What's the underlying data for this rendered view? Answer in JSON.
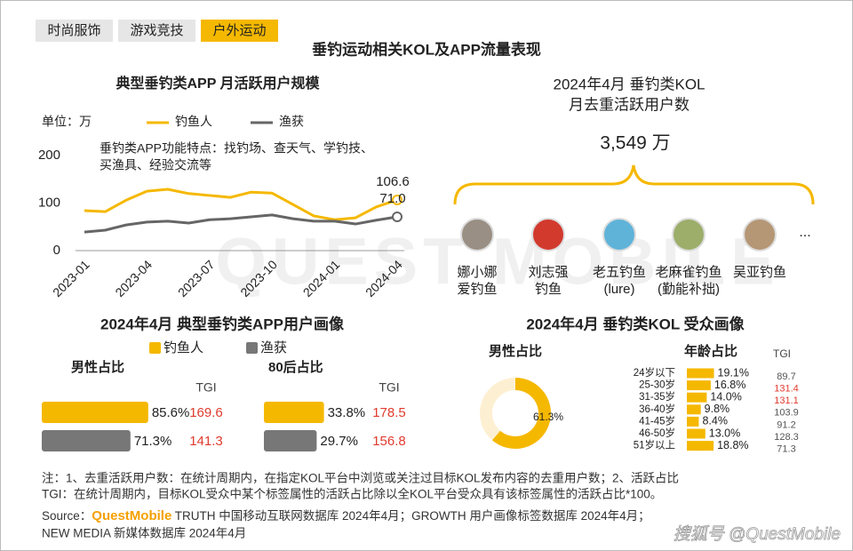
{
  "tabs": [
    "时尚服饰",
    "游戏竞技",
    "户外运动"
  ],
  "active_tab": "户外运动",
  "title": "垂钓运动相关KOL及APP流量表现",
  "chart_data": [
    {
      "type": "line",
      "title": "典型垂钓类APP 月活跃用户规模",
      "unit_label": "单位：万",
      "annotation_lines": [
        "垂钓类APP功能特点：找钓场、查天气、学钓技、",
        "买渔具、经验交流等"
      ],
      "categories": [
        "2023-01",
        null,
        null,
        "2023-04",
        null,
        null,
        "2023-07",
        null,
        null,
        "2023-10",
        null,
        null,
        "2024-01",
        null,
        null,
        "2024-04"
      ],
      "series": [
        {
          "name": "钓鱼人",
          "color": "#f5b800",
          "values": [
            84,
            82,
            106,
            125,
            129,
            120,
            116,
            112,
            123,
            121,
            97,
            73,
            65,
            69,
            92,
            106.6
          ],
          "value_labels": [
            null,
            null,
            null,
            null,
            null,
            null,
            null,
            null,
            null,
            null,
            null,
            null,
            null,
            null,
            null,
            "106.6"
          ]
        },
        {
          "name": "渔获",
          "color": "#666666",
          "values": [
            39,
            43,
            54,
            60,
            62,
            58,
            65,
            67,
            71,
            75,
            67,
            62,
            62,
            56,
            64,
            71.0
          ],
          "value_labels": [
            null,
            null,
            null,
            null,
            null,
            null,
            null,
            null,
            null,
            null,
            null,
            null,
            null,
            null,
            null,
            "71.0"
          ]
        }
      ],
      "ylim": [
        0,
        200
      ],
      "yticks": [
        0,
        100,
        200
      ]
    },
    {
      "type": "hbar",
      "title": "男性占比",
      "categories": [
        "钓鱼人",
        "渔获"
      ],
      "colors": [
        "#f5b800",
        "#777777"
      ],
      "values": [
        85.6,
        71.3
      ],
      "value_labels": [
        "85.6%",
        "71.3%"
      ],
      "tgi_label": "TGI",
      "tgi": [
        169.6,
        141.3
      ],
      "tgi_color": "#e03b2e"
    },
    {
      "type": "hbar",
      "title": "80后占比",
      "colors": [
        "#f5b800",
        "#777777"
      ],
      "values": [
        33.8,
        29.7
      ],
      "value_labels": [
        "33.8%",
        "29.7%"
      ],
      "tgi_label": "TGI",
      "tgi": [
        178.5,
        156.8
      ],
      "tgi_color": "#e03b2e"
    },
    {
      "type": "donut",
      "title": "男性占比",
      "values": [
        61.3
      ],
      "value_labels": [
        "61.3%"
      ],
      "colors": [
        "#f5b800",
        "#fdf0d2"
      ]
    },
    {
      "type": "agebar",
      "title": "年龄占比",
      "categories": [
        "24岁以下",
        "25-30岁",
        "31-35岁",
        "36-40岁",
        "41-45岁",
        "46-50岁",
        "51岁以上"
      ],
      "color": "#f5b800",
      "values": [
        19.1,
        16.8,
        14.0,
        9.8,
        8.4,
        13.0,
        18.8
      ],
      "value_labels": [
        "19.1%",
        "16.8%",
        "14.0%",
        "9.8%",
        "8.4%",
        "13.0%",
        "18.8%"
      ],
      "tgi_label": "TGI",
      "tgi": [
        89.7,
        131.4,
        131.1,
        103.9,
        91.2,
        128.3,
        71.3
      ],
      "tgi_colors": [
        "#555555",
        "#e03b2e",
        "#e03b2e",
        "#555555",
        "#555555",
        "#555555",
        "#555555"
      ]
    }
  ],
  "kol": {
    "title_lines": [
      "2024年4月 垂钓类KOL",
      "月去重活跃用户数"
    ],
    "total": "3,549 万",
    "accounts": [
      [
        "娜小娜",
        "爱钓鱼"
      ],
      [
        "刘志强",
        "钓鱼"
      ],
      [
        "老五钓鱼",
        "(lure)"
      ],
      [
        "老麻雀钓鱼",
        "(勤能补拙)"
      ],
      [
        "吴亚钓鱼"
      ]
    ],
    "more": "..."
  },
  "portrait_title": "2024年4月 典型垂钓类APP用户画像",
  "audience_title": "2024年4月 垂钓类KOL 受众画像",
  "notes": [
    "注：1、去重活跃用户数：在统计周期内，在指定KOL平台中浏览或关注过目标KOL发布内容的去重用户数；2、活跃占比",
    "TGI：在统计周期内，目标KOL受众中某个标签属性的活跃占比除以全KOL平台受众具有该标签属性的活跃占比*100。"
  ],
  "source": {
    "prefix": "Source：",
    "brand": "QuestMobile",
    "rest": " TRUTH 中国移动互联网数据库 2024年4月；GROWTH 用户画像标签数据库 2024年4月；",
    "line2": "NEW MEDIA 新媒体数据库 2024年4月"
  },
  "watermark": "QUEST MOBILE",
  "credit": "搜狐号 @QuestMobile"
}
